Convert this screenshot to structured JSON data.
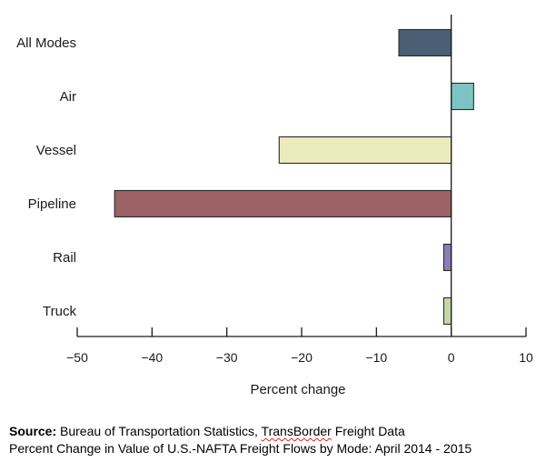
{
  "chart_data": {
    "type": "bar",
    "orientation": "horizontal",
    "categories": [
      "All Modes",
      "Air",
      "Vessel",
      "Pipeline",
      "Rail",
      "Truck"
    ],
    "values": [
      -7,
      3,
      -23,
      -45,
      -1,
      -1
    ],
    "colors": [
      "#4a5e74",
      "#7cc4c4",
      "#ecebbd",
      "#9c6266",
      "#8a7cb4",
      "#c3d7a6"
    ],
    "xlabel": "Percent change",
    "xlim": [
      -50,
      10
    ],
    "xticks": [
      -50,
      -40,
      -30,
      -20,
      -10,
      0,
      10
    ],
    "grid": false
  },
  "caption": {
    "source_label": "Source:",
    "source_pre": " Bureau of Transportation Statistics, ",
    "source_flagged": "TransBorder",
    "source_post": " Freight Data",
    "line2": "Percent Change in Value of U.S.-NAFTA Freight Flows by Mode: April 2014 - 2015"
  }
}
